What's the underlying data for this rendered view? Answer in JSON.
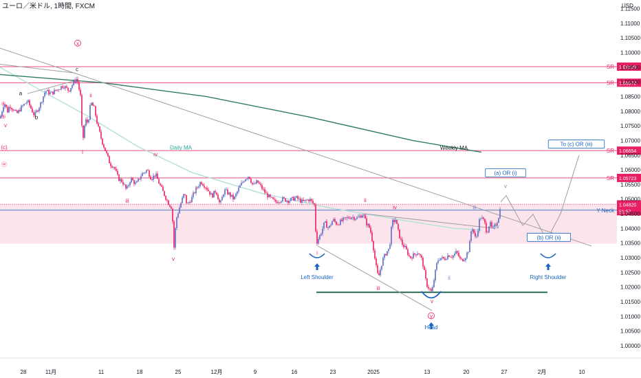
{
  "header": {
    "title": "ユーロ／米ドル, 1時間, FXCM",
    "currency": "USD"
  },
  "chart_data": {
    "type": "candlestick",
    "symbol": "EUR/USD",
    "timeframe": "1時間",
    "source": "FXCM",
    "y_axis": {
      "min": 0.996,
      "max": 1.117,
      "ticks": [
        "1.00000",
        "1.00500",
        "1.01000",
        "1.01500",
        "1.02000",
        "1.02500",
        "1.03000",
        "1.03500",
        "1.04000",
        "1.04500",
        "1.05000",
        "1.05500",
        "1.06000",
        "1.06500",
        "1.07000",
        "1.07500",
        "1.08000",
        "1.08500",
        "1.09000",
        "1.09500",
        "1.10000",
        "1.10500",
        "1.11000",
        "1.11500"
      ]
    },
    "x_axis": {
      "ticks": [
        {
          "label": "28",
          "i": 0
        },
        {
          "label": "11月",
          "i": 1
        },
        {
          "label": "11",
          "i": 2
        },
        {
          "label": "18",
          "i": 3
        },
        {
          "label": "25",
          "i": 4
        },
        {
          "label": "12月",
          "i": 5
        },
        {
          "label": "9",
          "i": 6
        },
        {
          "label": "16",
          "i": 7
        },
        {
          "label": "23",
          "i": 8
        },
        {
          "label": "2025",
          "i": 9,
          "bold": true
        },
        {
          "label": "13",
          "i": 10
        },
        {
          "label": "20",
          "i": 11
        },
        {
          "label": "27",
          "i": 12
        },
        {
          "label": "2月",
          "i": 13
        },
        {
          "label": "10",
          "i": 14
        }
      ]
    },
    "price_path": [
      [
        0,
        1.0775
      ],
      [
        6,
        1.083
      ],
      [
        11,
        1.08
      ],
      [
        14,
        1.082
      ],
      [
        20,
        1.0805
      ],
      [
        24,
        1.079
      ],
      [
        30,
        1.081
      ],
      [
        40,
        1.0835
      ],
      [
        50,
        1.0785
      ],
      [
        58,
        1.082
      ],
      [
        66,
        1.087
      ],
      [
        74,
        1.086
      ],
      [
        84,
        1.0875
      ],
      [
        92,
        1.0888
      ],
      [
        100,
        1.087
      ],
      [
        108,
        1.0902
      ],
      [
        112,
        1.0912
      ],
      [
        117,
        1.085
      ],
      [
        120,
        1.069
      ],
      [
        124,
        1.077
      ],
      [
        128,
        1.076
      ],
      [
        132,
        1.083
      ],
      [
        137,
        1.081
      ],
      [
        142,
        1.075
      ],
      [
        148,
        1.07
      ],
      [
        154,
        1.066
      ],
      [
        160,
        1.062
      ],
      [
        166,
        1.061
      ],
      [
        172,
        1.057
      ],
      [
        178,
        1.056
      ],
      [
        184,
        1.053
      ],
      [
        190,
        1.057
      ],
      [
        198,
        1.055
      ],
      [
        206,
        1.0585
      ],
      [
        214,
        1.06
      ],
      [
        220,
        1.057
      ],
      [
        226,
        1.0585
      ],
      [
        232,
        1.055
      ],
      [
        238,
        1.052
      ],
      [
        244,
        1.049
      ],
      [
        250,
        1.047
      ],
      [
        253,
        1.0335
      ],
      [
        256,
        1.043
      ],
      [
        262,
        1.048
      ],
      [
        268,
        1.052
      ],
      [
        272,
        1.048
      ],
      [
        278,
        1.05
      ],
      [
        284,
        1.053
      ],
      [
        292,
        1.056
      ],
      [
        300,
        1.054
      ],
      [
        308,
        1.051
      ],
      [
        314,
        1.053
      ],
      [
        320,
        1.048
      ],
      [
        326,
        1.053
      ],
      [
        332,
        1.052
      ],
      [
        340,
        1.05
      ],
      [
        348,
        1.054
      ],
      [
        356,
        1.057
      ],
      [
        362,
        1.058
      ],
      [
        368,
        1.0545
      ],
      [
        374,
        1.056
      ],
      [
        380,
        1.054
      ],
      [
        386,
        1.052
      ],
      [
        392,
        1.0505
      ],
      [
        400,
        1.049
      ],
      [
        410,
        1.05
      ],
      [
        420,
        1.0495
      ],
      [
        430,
        1.0505
      ],
      [
        440,
        1.049
      ],
      [
        450,
        1.05
      ],
      [
        457,
        1.048
      ],
      [
        460,
        1.035
      ],
      [
        466,
        1.038
      ],
      [
        472,
        1.042
      ],
      [
        478,
        1.04
      ],
      [
        484,
        1.043
      ],
      [
        490,
        1.0415
      ],
      [
        500,
        1.043
      ],
      [
        510,
        1.044
      ],
      [
        520,
        1.0435
      ],
      [
        528,
        1.045
      ],
      [
        532,
        1.042
      ],
      [
        538,
        1.04
      ],
      [
        542,
        1.035
      ],
      [
        546,
        1.028
      ],
      [
        550,
        1.023
      ],
      [
        556,
        1.029
      ],
      [
        562,
        1.032
      ],
      [
        566,
        1.033
      ],
      [
        570,
        1.042
      ],
      [
        575,
        1.043
      ],
      [
        580,
        1.038
      ],
      [
        584,
        1.035
      ],
      [
        590,
        1.033
      ],
      [
        596,
        1.03
      ],
      [
        602,
        1.031
      ],
      [
        608,
        1.032
      ],
      [
        614,
        1.029
      ],
      [
        620,
        1.021
      ],
      [
        624,
        1.0195
      ],
      [
        628,
        1.018
      ],
      [
        632,
        1.024
      ],
      [
        636,
        1.029
      ],
      [
        640,
        1.03
      ],
      [
        646,
        1.0295
      ],
      [
        652,
        1.031
      ],
      [
        658,
        1.0305
      ],
      [
        664,
        1.032
      ],
      [
        670,
        1.029
      ],
      [
        676,
        1.03
      ],
      [
        682,
        1.033
      ],
      [
        686,
        1.041
      ],
      [
        692,
        1.036
      ],
      [
        698,
        1.044
      ],
      [
        704,
        1.0425
      ],
      [
        708,
        1.0385
      ],
      [
        712,
        1.042
      ],
      [
        716,
        1.0395
      ],
      [
        720,
        1.041
      ],
      [
        724,
        1.043
      ],
      [
        728,
        1.0475
      ]
    ],
    "moving_averages": [
      {
        "name": "Daily MA",
        "color": "#b2dfdb",
        "points": [
          [
            0,
            1.095
          ],
          [
            60,
            1.087
          ],
          [
            130,
            1.078
          ],
          [
            200,
            1.068
          ],
          [
            280,
            1.059
          ],
          [
            380,
            1.052
          ],
          [
            480,
            1.047
          ],
          [
            580,
            1.043
          ],
          [
            660,
            1.04
          ],
          [
            700,
            1.0395
          ]
        ]
      },
      {
        "name": "Weekly MA",
        "color": "#2e7d5b",
        "points": [
          [
            0,
            1.0925
          ],
          [
            150,
            1.0897
          ],
          [
            300,
            1.085
          ],
          [
            450,
            1.078
          ],
          [
            600,
            1.07
          ],
          [
            700,
            1.066
          ]
        ]
      }
    ],
    "horizontal_levels": [
      {
        "label": "SR",
        "value": 1.0952,
        "tag": "1.09520",
        "color": "#e91e63"
      },
      {
        "label": "SR",
        "value": 1.08972,
        "tag": "1.08972",
        "color": "#e91e63"
      },
      {
        "label": "SR",
        "value": 1.06654,
        "tag": "1.06654",
        "color": "#e91e63"
      },
      {
        "label": "SR",
        "value": 1.05723,
        "tag": "1.05723",
        "color": "#e91e63"
      },
      {
        "label": "Y Neck",
        "value": 1.04624,
        "tag": "1.04624",
        "color": "#1565c0"
      }
    ],
    "current_price": {
      "value": 1.0482,
      "tag": "1.04820",
      "countdown": "51:57",
      "color": "#e91e63"
    },
    "zone": {
      "from": 1.0348,
      "to": 1.0485,
      "color": "#fce4ec"
    },
    "trendlines": [
      {
        "color": "#9e9e9e",
        "points": [
          [
            0,
            1.1015
          ],
          [
            860,
            1.034
          ]
        ]
      },
      {
        "color": "#9e9e9e",
        "points": [
          [
            462,
            1.034
          ],
          [
            628,
            1.012
          ]
        ]
      },
      {
        "color": "#9e9e9e",
        "points": [
          [
            530,
            1.045
          ],
          [
            720,
            1.04
          ]
        ]
      },
      {
        "color": "#9e9e9e",
        "points": [
          [
            0,
            1.096
          ],
          [
            110,
            1.093
          ]
        ]
      },
      {
        "color": "#9e9e9e",
        "points": [
          [
            40,
            1.086
          ],
          [
            110,
            1.0905
          ]
        ]
      }
    ],
    "neckline_head": {
      "color": "#1b5e4a",
      "value": 1.0182,
      "from": 460,
      "to": 796
    },
    "projection_path": {
      "color": "#9e9e9e",
      "points": [
        [
          728,
          1.049
        ],
        [
          736,
          1.0512
        ],
        [
          760,
          1.041
        ],
        [
          775,
          1.0448
        ],
        [
          795,
          1.036
        ],
        [
          815,
          1.045
        ],
        [
          842,
          1.065
        ]
      ]
    },
    "annotations": [
      {
        "text": "Daily MA",
        "color": "#26a69a",
        "i": 263,
        "v": 1.0672
      },
      {
        "text": "Weekly MA",
        "color": "#131722",
        "i": 660,
        "v": 1.067
      },
      {
        "text": "(a) OR  (i)",
        "color": "#1565c0",
        "i": 735,
        "v": 1.0585,
        "boxed": true
      },
      {
        "text": "To (c) OR  (iii)",
        "color": "#1565c0",
        "i": 838,
        "v": 1.0683,
        "boxed": true
      },
      {
        "text": "(b) OR  (ii)",
        "color": "#1565c0",
        "i": 798,
        "v": 1.0365,
        "boxed": true
      },
      {
        "text": "Left Shoulder",
        "color": "#1565c0",
        "i": 461,
        "v": 1.023,
        "italic": true
      },
      {
        "text": "Right Shoulder",
        "color": "#1565c0",
        "i": 797,
        "v": 1.023,
        "italic": true
      },
      {
        "text": "Head",
        "color": "#1565c0",
        "i": 627,
        "v": 1.0058,
        "italic": true
      }
    ],
    "wave_labels": [
      {
        "text": "x",
        "i": 113,
        "v": 1.1025,
        "color": "#e91e63",
        "circled": true
      },
      {
        "text": "c",
        "i": 112,
        "v": 1.0937,
        "color": "#131722"
      },
      {
        "text": "a",
        "i": 30,
        "v": 1.0855,
        "color": "#131722"
      },
      {
        "text": "b",
        "i": 53,
        "v": 1.0772,
        "color": "#131722"
      },
      {
        "text": "ii",
        "i": 132,
        "v": 1.0847,
        "color": "#e91e63"
      },
      {
        "text": "i",
        "i": 120,
        "v": 1.0654,
        "color": "#e91e63"
      },
      {
        "text": "iv",
        "i": 226,
        "v": 1.0646,
        "color": "#e91e63"
      },
      {
        "text": "iii",
        "i": 185,
        "v": 1.0488,
        "color": "#e91e63"
      },
      {
        "text": "v",
        "i": 252,
        "v": 1.029,
        "color": "#e91e63"
      },
      {
        "text": "④",
        "i": 5,
        "v": 1.082,
        "color": "#e91e63"
      },
      {
        "text": "⑤",
        "i": 5,
        "v": 1.0775,
        "color": "#e91e63"
      },
      {
        "text": "v",
        "i": 8,
        "v": 1.0745,
        "color": "#e91e63"
      },
      {
        "text": "(c)",
        "i": 6,
        "v": 1.067,
        "color": "#e91e63"
      },
      {
        "text": "ⓦ",
        "i": 6,
        "v": 1.0612,
        "color": "#e91e63"
      },
      {
        "text": "i",
        "i": 461,
        "v": 1.031,
        "color": "#e91e63"
      },
      {
        "text": "ii",
        "i": 531,
        "v": 1.049,
        "color": "#e91e63"
      },
      {
        "text": "iii",
        "i": 550,
        "v": 1.019,
        "color": "#e91e63"
      },
      {
        "text": "iv",
        "i": 574,
        "v": 1.0465,
        "color": "#e91e63"
      },
      {
        "text": "v",
        "i": 628,
        "v": 1.0145,
        "color": "#e91e63"
      },
      {
        "text": "y",
        "i": 627,
        "v": 1.0095,
        "color": "#e91e63",
        "circled": true
      },
      {
        "text": "ii",
        "i": 653,
        "v": 1.0225,
        "color": "#7986cb"
      },
      {
        "text": "iii",
        "i": 690,
        "v": 1.0465,
        "color": "#7986cb"
      },
      {
        "text": "iv",
        "i": 723,
        "v": 1.04,
        "color": "#7986cb"
      },
      {
        "text": "v",
        "i": 735,
        "v": 1.0538,
        "color": "#7986cb"
      }
    ]
  }
}
